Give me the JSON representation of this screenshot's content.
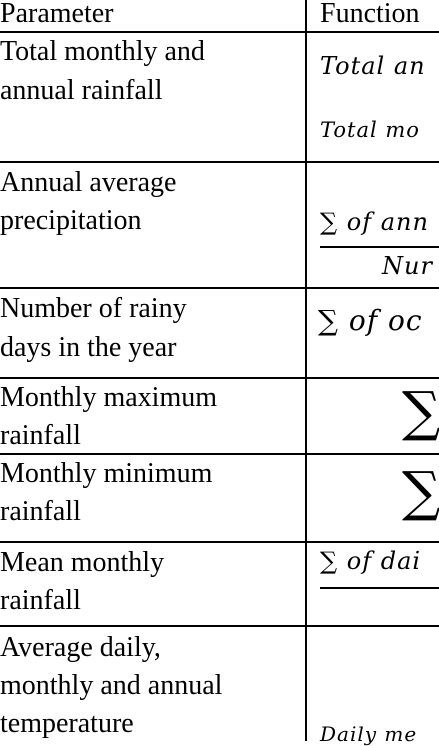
{
  "table": {
    "header": [
      "Parameter",
      "Function"
    ],
    "rows": [
      {
        "parameter": [
          "Total monthly and",
          "annual rainfall"
        ],
        "function": [
          "Total an",
          "Total mo"
        ]
      },
      {
        "parameter": [
          "Annual average",
          "precipitation"
        ],
        "function": [
          "∑ of ann",
          "Nur"
        ]
      },
      {
        "parameter": [
          "Number of rainy",
          "days in the year"
        ],
        "function": [
          "∑ of oc"
        ]
      },
      {
        "parameter": [
          "Monthly maximum",
          "rainfall"
        ],
        "function": [
          "∑"
        ]
      },
      {
        "parameter": [
          "Monthly minimum",
          "rainfall"
        ],
        "function": [
          "∑"
        ]
      },
      {
        "parameter": [
          "Mean monthly",
          "rainfall"
        ],
        "function": [
          "∑ of dai"
        ]
      },
      {
        "parameter": [
          "Average daily,",
          "monthly and annual",
          "temperature"
        ],
        "function": [
          "Daily me"
        ]
      }
    ]
  }
}
